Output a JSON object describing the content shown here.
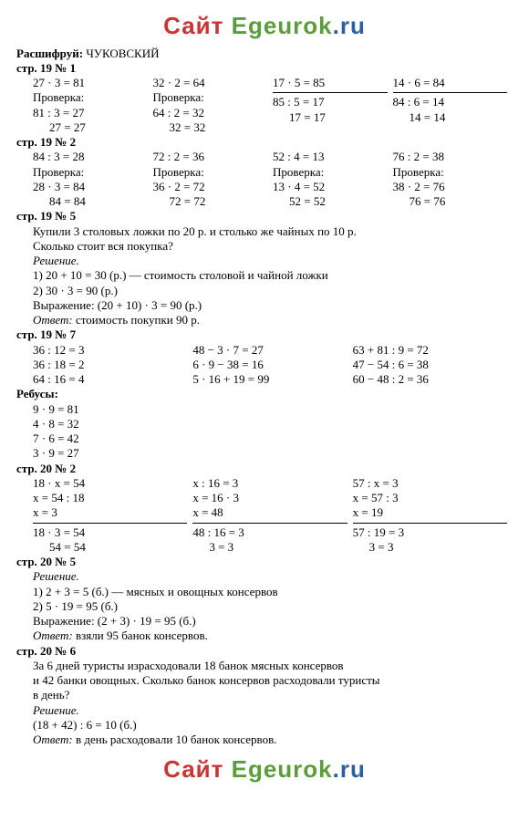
{
  "watermark": {
    "site": "Сайт ",
    "name": "Egeurok",
    "dot": ".",
    "ru": "ru"
  },
  "decipher_label": "Расшифруй:",
  "decipher_value": "ЧУКОВСКИЙ",
  "p19_1": {
    "title": "стр. 19 № 1",
    "check_label": "Проверка:",
    "cols": [
      {
        "a": "27 · 3 = 81",
        "b": "81 : 3 = 27",
        "c": "27 = 27"
      },
      {
        "a": "32 · 2 = 64",
        "b": "64 : 2 = 32",
        "c": "32 = 32"
      },
      {
        "a": "17 · 5 = 85",
        "b": "85 : 5 = 17",
        "c": "17 = 17"
      },
      {
        "a": "14 · 6 = 84",
        "b": "84 : 6 = 14",
        "c": "14 = 14"
      }
    ]
  },
  "p19_2": {
    "title": "стр. 19 № 2",
    "check_label": "Проверка:",
    "cols": [
      {
        "a": "84 : 3 = 28",
        "b": "28 · 3 = 84",
        "c": "84 = 84"
      },
      {
        "a": "72 : 2 = 36",
        "b": "36 · 2 = 72",
        "c": "72 = 72"
      },
      {
        "a": "52 : 4 = 13",
        "b": "13 · 4 = 52",
        "c": "52 = 52"
      },
      {
        "a": "76 : 2 = 38",
        "b": "38 · 2 = 76",
        "c": "76 = 76"
      }
    ]
  },
  "p19_5": {
    "title": "стр. 19 № 5",
    "problem_l1": "Купили 3 столовых ложки по 20 р. и столько же чайных по 10 р.",
    "problem_l2": "Сколько стоит вся покупка?",
    "solution_label": "Решение.",
    "s1": "1) 20 + 10 = 30 (р.) — стоимость столовой и чайной ложки",
    "s2": "2) 30 · 3 = 90 (р.)",
    "expr": "Выражение: (20 + 10) · 3 = 90 (р.)",
    "ans_label": "Ответ:",
    "ans": " стоимость покупки 90 р."
  },
  "p19_7": {
    "title": "стр. 19 № 7",
    "cols": [
      [
        "36 : 12 = 3",
        "36 : 18 = 2",
        "64 : 16 = 4"
      ],
      [
        "48 − 3 · 7 = 27",
        "6 · 9 − 38 = 16",
        "5 · 16 + 19 = 99"
      ],
      [
        "63 + 81 : 9 = 72",
        "47 − 54 : 6 = 38",
        "60 − 48 : 2 = 36"
      ]
    ]
  },
  "rebus": {
    "title": "Ребусы:",
    "lines": [
      "9 · 9 = 81",
      "4 · 8 = 32",
      "7 · 6 = 42",
      "3 · 9 = 27"
    ]
  },
  "p20_2": {
    "title": "стр. 20 № 2",
    "cols": [
      {
        "l": [
          "18 · x = 54",
          "x = 54 : 18",
          "x = 3"
        ],
        "r": [
          "18 · 3 = 54",
          "54 = 54"
        ]
      },
      {
        "l": [
          "x : 16 = 3",
          "x = 16 · 3",
          "x = 48"
        ],
        "r": [
          "48 : 16 = 3",
          "3 = 3"
        ]
      },
      {
        "l": [
          "57 : x = 3",
          "x = 57 : 3",
          "x = 19"
        ],
        "r": [
          "57 : 19 = 3",
          "3 = 3"
        ]
      }
    ]
  },
  "p20_5": {
    "title": "стр. 20 № 5",
    "solution_label": "Решение.",
    "s1": "1) 2 + 3 = 5 (б.) — мясных и овощных консервов",
    "s2": "2) 5 · 19 = 95 (б.)",
    "expr": "Выражение: (2 + 3) · 19 = 95 (б.)",
    "ans_label": "Ответ:",
    "ans": " взяли 95 банок консервов."
  },
  "p20_6": {
    "title": "стр. 20 № 6",
    "p1": "За 6 дней туристы израсходовали 18 банок мясных консервов",
    "p2": "и 42 банки овощных. Сколько банок консервов расходовали туристы",
    "p3": "в день?",
    "solution_label": "Решение.",
    "s1": "(18 + 42) : 6 = 10 (б.)",
    "ans_label": "Ответ:",
    "ans": " в день расходовали 10 банок консервов."
  }
}
